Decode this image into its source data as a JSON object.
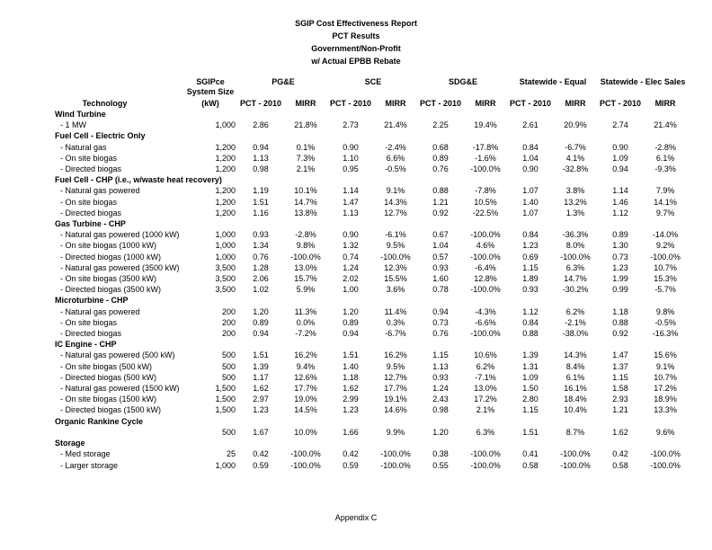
{
  "title": {
    "lines": [
      "SGIP Cost Effectiveness Report",
      "PCT Results",
      "Government/Non-Profit",
      "w/ Actual EPBB Rebate"
    ]
  },
  "footer": {
    "label": "Appendix C"
  },
  "table": {
    "tech_header": "Technology",
    "size_header": {
      "line1": "SGIPce",
      "line2": "System Size",
      "line3": "(kW)"
    },
    "sub_pct": "PCT - 2010",
    "sub_mirr": "MIRR",
    "groups": [
      {
        "label": "PG&E"
      },
      {
        "label": "SCE"
      },
      {
        "label": "SDG&E"
      },
      {
        "label": "Statewide - Equal"
      },
      {
        "label": "Statewide - Elec Sales"
      }
    ],
    "sections": [
      {
        "name": "Wind Turbine",
        "rows": [
          {
            "label": "- 1 MW",
            "size": "1,000",
            "values": [
              "2.86",
              "21.8%",
              "2.73",
              "21.4%",
              "2.25",
              "19.4%",
              "2.61",
              "20.9%",
              "2.74",
              "21.4%"
            ]
          }
        ]
      },
      {
        "name": "Fuel Cell - Electric Only",
        "rows": [
          {
            "label": "- Natural gas",
            "size": "1,200",
            "values": [
              "0.94",
              "0.1%",
              "0.90",
              "-2.4%",
              "0.68",
              "-17.8%",
              "0.84",
              "-6.7%",
              "0.90",
              "-2.8%"
            ]
          },
          {
            "label": "- On site biogas",
            "size": "1,200",
            "values": [
              "1.13",
              "7.3%",
              "1.10",
              "6.6%",
              "0.89",
              "-1.6%",
              "1.04",
              "4.1%",
              "1.09",
              "6.1%"
            ]
          },
          {
            "label": "- Directed biogas",
            "size": "1,200",
            "values": [
              "0.98",
              "2.1%",
              "0.95",
              "-0.5%",
              "0.76",
              "-100.0%",
              "0.90",
              "-32.8%",
              "0.94",
              "-9.3%"
            ]
          }
        ]
      },
      {
        "name": "Fuel Cell - CHP (i.e., w/waste heat recovery)",
        "rows": [
          {
            "label": "- Natural gas powered",
            "size": "1,200",
            "values": [
              "1.19",
              "10.1%",
              "1.14",
              "9.1%",
              "0.88",
              "-7.8%",
              "1.07",
              "3.8%",
              "1.14",
              "7.9%"
            ]
          },
          {
            "label": "- On site biogas",
            "size": "1,200",
            "values": [
              "1.51",
              "14.7%",
              "1.47",
              "14.3%",
              "1.21",
              "10.5%",
              "1.40",
              "13.2%",
              "1.46",
              "14.1%"
            ]
          },
          {
            "label": "- Directed biogas",
            "size": "1,200",
            "values": [
              "1.16",
              "13.8%",
              "1.13",
              "12.7%",
              "0.92",
              "-22.5%",
              "1.07",
              "1.3%",
              "1.12",
              "9.7%"
            ]
          }
        ]
      },
      {
        "name": "Gas Turbine - CHP",
        "rows": [
          {
            "label": "- Natural gas powered (1000 kW)",
            "size": "1,000",
            "values": [
              "0.93",
              "-2.8%",
              "0.90",
              "-6.1%",
              "0.67",
              "-100.0%",
              "0.84",
              "-36.3%",
              "0.89",
              "-14.0%"
            ]
          },
          {
            "label": "- On site biogas (1000 kW)",
            "size": "1,000",
            "values": [
              "1.34",
              "9.8%",
              "1.32",
              "9.5%",
              "1.04",
              "4.6%",
              "1.23",
              "8.0%",
              "1.30",
              "9.2%"
            ]
          },
          {
            "label": "- Directed biogas (1000 kW)",
            "size": "1,000",
            "values": [
              "0.76",
              "-100.0%",
              "0.74",
              "-100.0%",
              "0.57",
              "-100.0%",
              "0.69",
              "-100.0%",
              "0.73",
              "-100.0%"
            ]
          },
          {
            "label": "- Natural gas powered (3500 kW)",
            "size": "3,500",
            "values": [
              "1.28",
              "13.0%",
              "1.24",
              "12.3%",
              "0.93",
              "-6.4%",
              "1.15",
              "6.3%",
              "1.23",
              "10.7%"
            ]
          },
          {
            "label": "- On site biogas (3500 kW)",
            "size": "3,500",
            "values": [
              "2.06",
              "15.7%",
              "2.02",
              "15.5%",
              "1.60",
              "12.8%",
              "1.89",
              "14.7%",
              "1.99",
              "15.3%"
            ]
          },
          {
            "label": "- Directed biogas (3500 kW)",
            "size": "3,500",
            "values": [
              "1.02",
              "5.9%",
              "1.00",
              "3.6%",
              "0.78",
              "-100.0%",
              "0.93",
              "-30.2%",
              "0.99",
              "-5.7%"
            ]
          }
        ]
      },
      {
        "name": "Microturbine - CHP",
        "rows": [
          {
            "label": "- Natural gas powered",
            "size": "200",
            "values": [
              "1.20",
              "11.3%",
              "1.20",
              "11.4%",
              "0.94",
              "-4.3%",
              "1.12",
              "6.2%",
              "1.18",
              "9.8%"
            ]
          },
          {
            "label": "- On site biogas",
            "size": "200",
            "values": [
              "0.89",
              "0.0%",
              "0.89",
              "0.3%",
              "0.73",
              "-6.6%",
              "0.84",
              "-2.1%",
              "0.88",
              "-0.5%"
            ]
          },
          {
            "label": "- Directed biogas",
            "size": "200",
            "values": [
              "0.94",
              "-7.2%",
              "0.94",
              "-6.7%",
              "0.76",
              "-100.0%",
              "0.88",
              "-38.0%",
              "0.92",
              "-16.3%"
            ]
          }
        ]
      },
      {
        "name": "IC Engine - CHP",
        "rows": [
          {
            "label": "- Natural gas powered (500 kW)",
            "size": "500",
            "values": [
              "1.51",
              "16.2%",
              "1.51",
              "16.2%",
              "1.15",
              "10.6%",
              "1.39",
              "14.3%",
              "1.47",
              "15.6%"
            ]
          },
          {
            "label": "- On site biogas (500 kW)",
            "size": "500",
            "values": [
              "1.39",
              "9.4%",
              "1.40",
              "9.5%",
              "1.13",
              "6.2%",
              "1.31",
              "8.4%",
              "1.37",
              "9.1%"
            ]
          },
          {
            "label": "- Directed biogas (500 kW)",
            "size": "500",
            "values": [
              "1.17",
              "12.6%",
              "1.18",
              "12.7%",
              "0.93",
              "-7.1%",
              "1.09",
              "6.1%",
              "1.15",
              "10.7%"
            ]
          },
          {
            "label": "- Natural gas powered (1500 kW)",
            "size": "1,500",
            "values": [
              "1.62",
              "17.7%",
              "1.62",
              "17.7%",
              "1.24",
              "13.0%",
              "1.50",
              "16.1%",
              "1.58",
              "17.2%"
            ]
          },
          {
            "label": "- On site biogas (1500 kW)",
            "size": "1,500",
            "values": [
              "2.97",
              "19.0%",
              "2.99",
              "19.1%",
              "2.43",
              "17.2%",
              "2.80",
              "18.4%",
              "2.93",
              "18.9%"
            ]
          },
          {
            "label": "- Directed biogas (1500 kW)",
            "size": "1,500",
            "values": [
              "1.23",
              "14.5%",
              "1.23",
              "14.6%",
              "0.98",
              "2.1%",
              "1.15",
              "10.4%",
              "1.21",
              "13.3%"
            ]
          }
        ]
      },
      {
        "name": "Organic Rankine Cycle",
        "rows": [
          {
            "label": "",
            "size": "500",
            "values": [
              "1.67",
              "10.0%",
              "1.66",
              "9.9%",
              "1.20",
              "6.3%",
              "1.51",
              "8.7%",
              "1.62",
              "9.6%"
            ]
          }
        ]
      },
      {
        "name": "Storage",
        "rows": [
          {
            "label": "- Med storage",
            "size": "25",
            "values": [
              "0.42",
              "-100.0%",
              "0.42",
              "-100.0%",
              "0.38",
              "-100.0%",
              "0.41",
              "-100.0%",
              "0.42",
              "-100.0%"
            ]
          },
          {
            "label": "- Larger storage",
            "size": "1,000",
            "values": [
              "0.59",
              "-100.0%",
              "0.59",
              "-100.0%",
              "0.55",
              "-100.0%",
              "0.58",
              "-100.0%",
              "0.58",
              "-100.0%"
            ]
          }
        ]
      }
    ]
  }
}
